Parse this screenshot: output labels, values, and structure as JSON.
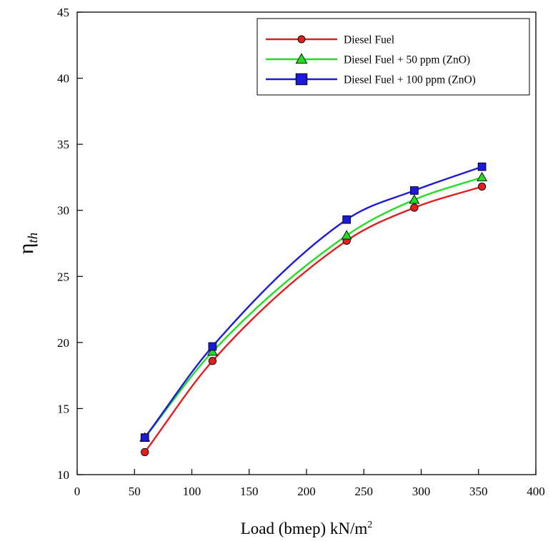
{
  "chart_data": {
    "type": "line",
    "xlabel": "Load (bmep) kN/m",
    "xlabel_sup": "2",
    "ylabel": "η",
    "ylabel_sub": "th",
    "xlim": [
      0,
      400
    ],
    "ylim": [
      10,
      45
    ],
    "xticks": [
      "0",
      "50",
      "100",
      "150",
      "200",
      "250",
      "300",
      "350",
      "400"
    ],
    "yticks": [
      "10",
      "15",
      "20",
      "25",
      "30",
      "35",
      "40",
      "45"
    ],
    "grid": false,
    "legend_position": "top-right",
    "x": [
      59,
      118,
      235,
      294,
      353
    ],
    "series": [
      {
        "name": "Diesel Fuel",
        "color": "#e02020",
        "marker": "circle",
        "values": [
          11.7,
          18.6,
          27.7,
          30.2,
          31.8
        ]
      },
      {
        "name": "Diesel Fuel + 50 ppm (ZnO)",
        "color": "#22dd22",
        "marker": "triangle",
        "values": [
          12.8,
          19.3,
          28.1,
          30.8,
          32.5
        ]
      },
      {
        "name": "Diesel Fuel + 100 ppm (ZnO)",
        "color": "#1a1ad8",
        "marker": "square",
        "values": [
          12.8,
          19.7,
          29.3,
          31.5,
          33.3
        ]
      }
    ]
  }
}
